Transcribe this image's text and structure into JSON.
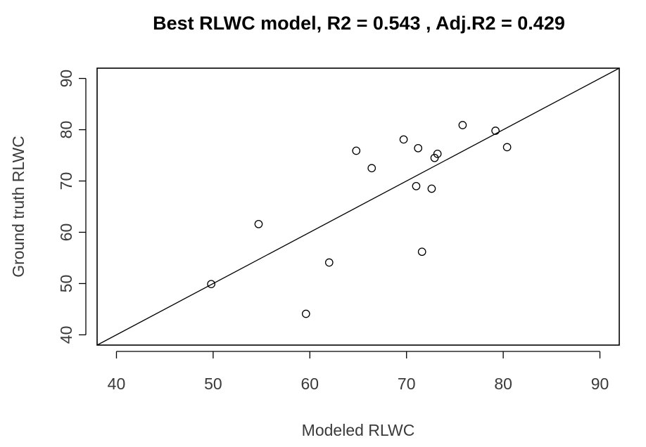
{
  "chart_data": {
    "type": "scatter",
    "title": "Best RLWC model, R2 =  0.543 , Adj.R2 = 0.429",
    "xlabel": "Modeled RLWC",
    "ylabel": "Ground truth RLWC",
    "xlim": [
      38,
      92
    ],
    "ylim": [
      38,
      92
    ],
    "x_ticks": [
      "40",
      "50",
      "60",
      "70",
      "80",
      "90"
    ],
    "y_ticks": [
      "40",
      "50",
      "60",
      "70",
      "80",
      "90"
    ],
    "grid": false,
    "reference_line": "y = x",
    "points": [
      {
        "x": 49.8,
        "y": 49.9
      },
      {
        "x": 54.7,
        "y": 61.6
      },
      {
        "x": 59.6,
        "y": 44.1
      },
      {
        "x": 62.0,
        "y": 54.1
      },
      {
        "x": 64.8,
        "y": 75.9
      },
      {
        "x": 66.4,
        "y": 72.5
      },
      {
        "x": 69.7,
        "y": 78.1
      },
      {
        "x": 71.0,
        "y": 69.0
      },
      {
        "x": 71.2,
        "y": 76.4
      },
      {
        "x": 71.6,
        "y": 56.2
      },
      {
        "x": 72.6,
        "y": 68.5
      },
      {
        "x": 72.9,
        "y": 74.5
      },
      {
        "x": 73.2,
        "y": 75.3
      },
      {
        "x": 75.8,
        "y": 80.9
      },
      {
        "x": 79.2,
        "y": 79.8
      },
      {
        "x": 80.4,
        "y": 76.6
      }
    ],
    "colors": {
      "points": "#000000",
      "axes": "#000000",
      "text": "#3a3a3a"
    }
  }
}
